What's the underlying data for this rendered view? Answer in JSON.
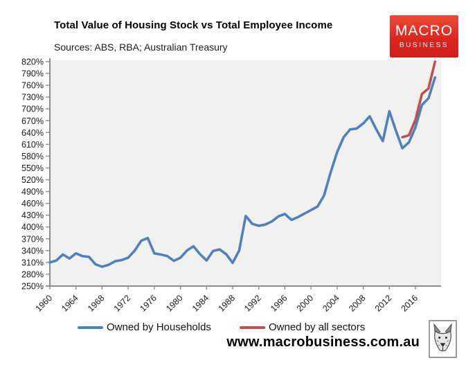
{
  "chart_data": {
    "type": "line",
    "title": "Total Value of Housing Stock vs Total Employee Income",
    "subtitle": "Sources: ABS, RBA; Australian Treasury",
    "xlabel": "",
    "ylabel": "",
    "ylim": [
      250,
      820
    ],
    "y_tick_step_pct": 30,
    "y_ticks": [
      "250%",
      "280%",
      "310%",
      "340%",
      "370%",
      "400%",
      "430%",
      "460%",
      "490%",
      "520%",
      "550%",
      "580%",
      "610%",
      "640%",
      "670%",
      "700%",
      "730%",
      "760%",
      "790%",
      "820%"
    ],
    "x_ticks": [
      1960,
      1964,
      1968,
      1972,
      1976,
      1980,
      1984,
      1988,
      1992,
      1996,
      2000,
      2004,
      2008,
      2012,
      2016
    ],
    "grid": false,
    "plot_bg": "#f1f1ef",
    "axis_color": "#8c8c8c",
    "legend_position": "bottom",
    "series": [
      {
        "name": "Owned by Households",
        "color": "#4f81bd",
        "x_start": 1960,
        "x_step": 1,
        "values": [
          310,
          315,
          330,
          320,
          333,
          326,
          324,
          305,
          299,
          304,
          313,
          316,
          322,
          340,
          365,
          372,
          333,
          330,
          326,
          314,
          322,
          340,
          351,
          331,
          315,
          339,
          343,
          331,
          309,
          340,
          428,
          408,
          403,
          406,
          414,
          427,
          433,
          418,
          425,
          434,
          443,
          452,
          480,
          538,
          590,
          628,
          648,
          650,
          663,
          681,
          648,
          618,
          694,
          645,
          600,
          615,
          653,
          710,
          727,
          780
        ]
      },
      {
        "name": "Owned by all sectors",
        "color": "#c0504d",
        "x_start": 2014,
        "x_step": 1,
        "values": [
          628,
          633,
          672,
          738,
          752,
          820
        ]
      }
    ]
  },
  "logo": {
    "line1": "MACRO",
    "line2": "BUSINESS",
    "bg_color": "#dd2e26",
    "text_color": "#ffffff"
  },
  "footer": {
    "url": "www.macrobusiness.com.au",
    "wolf_icon": "wolf-head-sketch"
  }
}
